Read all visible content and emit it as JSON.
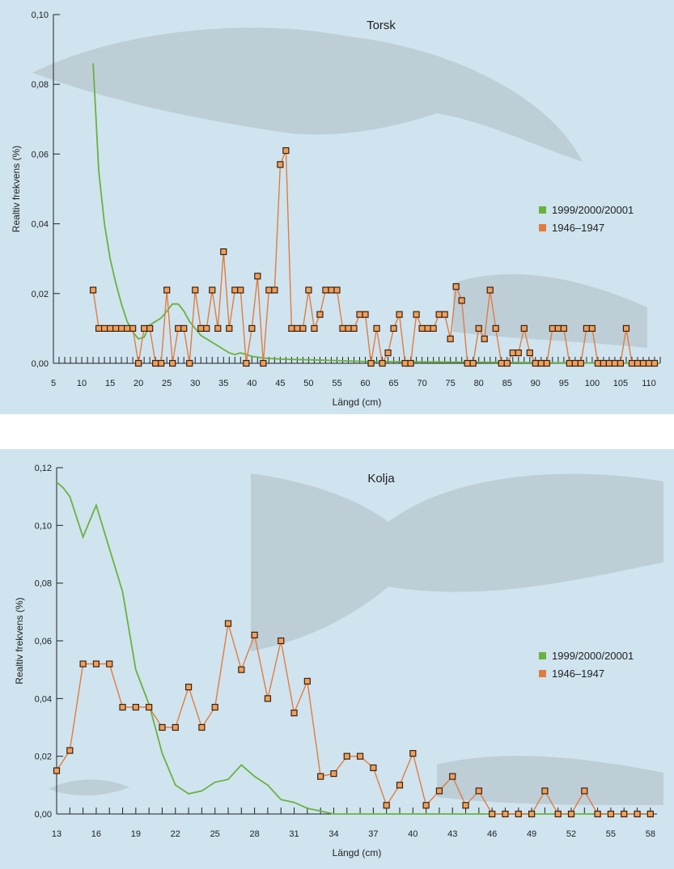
{
  "chart_data": [
    {
      "type": "line",
      "title": "Torsk",
      "xlabel": "Längd (cm)",
      "ylabel": "Realtiv frekvens (%)",
      "xlim": [
        5,
        112
      ],
      "ylim": [
        0,
        0.1
      ],
      "xticks": [
        5,
        10,
        15,
        20,
        25,
        30,
        35,
        40,
        45,
        50,
        55,
        60,
        65,
        70,
        75,
        80,
        85,
        90,
        95,
        100,
        105,
        110
      ],
      "yticks": [
        0.0,
        0.02,
        0.04,
        0.06,
        0.08,
        0.1
      ],
      "ytick_labels": [
        "0,00",
        "0,02",
        "0,04",
        "0,06",
        "0,08",
        "0,10"
      ],
      "legend_position": "right",
      "colors": {
        "green": "#6ab23e",
        "orange": "#e27c3e",
        "marker_fill": "#f0a05a",
        "marker_edge": "#3a2010"
      },
      "series": [
        {
          "name": "1999/2000/20001",
          "marker": false,
          "x": [
            12,
            13,
            14,
            15,
            16,
            17,
            18,
            19,
            20,
            21,
            22,
            23,
            24,
            25,
            26,
            27,
            28,
            29,
            30,
            31,
            32,
            33,
            34,
            35,
            36,
            37,
            38,
            40,
            42,
            45,
            50,
            55,
            60,
            70,
            80,
            90,
            100,
            112
          ],
          "y": [
            0.086,
            0.055,
            0.04,
            0.03,
            0.023,
            0.017,
            0.012,
            0.009,
            0.007,
            0.0075,
            0.011,
            0.012,
            0.013,
            0.015,
            0.017,
            0.017,
            0.015,
            0.012,
            0.01,
            0.008,
            0.007,
            0.006,
            0.005,
            0.004,
            0.003,
            0.0025,
            0.003,
            0.002,
            0.0015,
            0.0012,
            0.001,
            0.0008,
            0.0005,
            0.0004,
            0.0003,
            0.0002,
            0.0001,
            0
          ]
        },
        {
          "name": "1946–1947",
          "marker": true,
          "x": [
            12,
            13,
            14,
            15,
            16,
            17,
            18,
            19,
            20,
            21,
            22,
            23,
            24,
            25,
            26,
            27,
            28,
            29,
            30,
            31,
            32,
            33,
            34,
            35,
            36,
            37,
            38,
            39,
            40,
            41,
            42,
            43,
            44,
            45,
            46,
            47,
            48,
            49,
            50,
            51,
            52,
            53,
            54,
            55,
            56,
            57,
            58,
            59,
            60,
            61,
            62,
            63,
            64,
            65,
            66,
            67,
            68,
            69,
            70,
            71,
            72,
            73,
            74,
            75,
            76,
            77,
            78,
            79,
            80,
            81,
            82,
            83,
            84,
            85,
            86,
            87,
            88,
            89,
            90,
            91,
            92,
            93,
            94,
            95,
            96,
            97,
            98,
            99,
            100,
            101,
            102,
            103,
            104,
            105,
            106,
            107,
            108,
            109,
            110,
            111
          ],
          "y": [
            0.021,
            0.01,
            0.01,
            0.01,
            0.01,
            0.01,
            0.01,
            0.01,
            0,
            0.01,
            0.01,
            0,
            0,
            0.021,
            0,
            0.01,
            0.01,
            0,
            0.021,
            0.01,
            0.01,
            0.021,
            0.01,
            0.032,
            0.01,
            0.021,
            0.021,
            0,
            0.01,
            0.025,
            0,
            0.021,
            0.021,
            0.057,
            0.061,
            0.01,
            0.01,
            0.01,
            0.021,
            0.01,
            0.014,
            0.021,
            0.021,
            0.021,
            0.01,
            0.01,
            0.01,
            0.014,
            0.014,
            0,
            0.01,
            0,
            0.003,
            0.01,
            0.014,
            0,
            0,
            0.014,
            0.01,
            0.01,
            0.01,
            0.014,
            0.014,
            0.007,
            0.022,
            0.018,
            0,
            0,
            0.01,
            0.007,
            0.021,
            0.01,
            0,
            0,
            0.003,
            0.003,
            0.01,
            0.003,
            0,
            0,
            0,
            0.01,
            0.01,
            0.01,
            0,
            0,
            0,
            0.01,
            0.01,
            0,
            0,
            0,
            0,
            0,
            0.01,
            0,
            0,
            0,
            0,
            0
          ],
          "ydup": []
        }
      ]
    },
    {
      "type": "line",
      "title": "Kolja",
      "xlabel": "Längd (cm)",
      "ylabel": "Realtiv frekvens (%)",
      "xlim": [
        13,
        58.5
      ],
      "ylim": [
        0,
        0.12
      ],
      "xticks": [
        13,
        16,
        19,
        22,
        25,
        28,
        31,
        34,
        37,
        40,
        43,
        46,
        49,
        52,
        55,
        58
      ],
      "yticks": [
        0.0,
        0.02,
        0.04,
        0.06,
        0.08,
        0.1,
        0.12
      ],
      "ytick_labels": [
        "0,00",
        "0,02",
        "0,04",
        "0,06",
        "0,08",
        "0,10",
        "0,12"
      ],
      "legend_position": "right",
      "colors": {
        "green": "#6ab23e",
        "orange": "#e27c3e",
        "marker_fill": "#f0a05a",
        "marker_edge": "#3a2010"
      },
      "series": [
        {
          "name": "1999/2000/20001",
          "marker": false,
          "x": [
            13,
            13.5,
            14,
            15,
            16,
            17,
            18,
            19,
            20,
            21,
            22,
            23,
            24,
            25,
            26,
            27,
            28,
            29,
            30,
            31,
            32,
            33,
            34,
            36,
            40,
            45,
            50,
            58
          ],
          "y": [
            0.115,
            0.113,
            0.11,
            0.096,
            0.107,
            0.092,
            0.077,
            0.05,
            0.038,
            0.021,
            0.01,
            0.007,
            0.008,
            0.011,
            0.012,
            0.017,
            0.013,
            0.01,
            0.005,
            0.004,
            0.002,
            0.001,
            0,
            0,
            0,
            0,
            0,
            0
          ]
        },
        {
          "name": "1946–1947",
          "marker": true,
          "x": [
            13,
            14,
            15,
            16,
            17,
            18,
            19,
            20,
            21,
            22,
            23,
            24,
            25,
            26,
            27,
            28,
            29,
            30,
            31,
            32,
            33,
            34,
            35,
            36,
            37,
            38,
            39,
            40,
            41,
            42,
            43,
            44,
            45,
            46,
            47,
            48,
            49,
            50,
            51,
            52,
            53,
            54,
            55,
            56,
            57,
            58
          ],
          "y": [
            0.015,
            0.022,
            0.052,
            0.052,
            0.052,
            0.037,
            0.037,
            0.037,
            0.03,
            0.03,
            0.044,
            0.03,
            0.037,
            0.066,
            0.05,
            0.062,
            0.04,
            0.06,
            0.035,
            0.046,
            0.013,
            0.014,
            0.02,
            0.02,
            0.016,
            0.003,
            0.01,
            0.021,
            0.003,
            0.008,
            0.013,
            0.003,
            0.008,
            0,
            0,
            0,
            0,
            0.008,
            0,
            0,
            0.008,
            0,
            0,
            0,
            0,
            0
          ]
        }
      ]
    }
  ]
}
